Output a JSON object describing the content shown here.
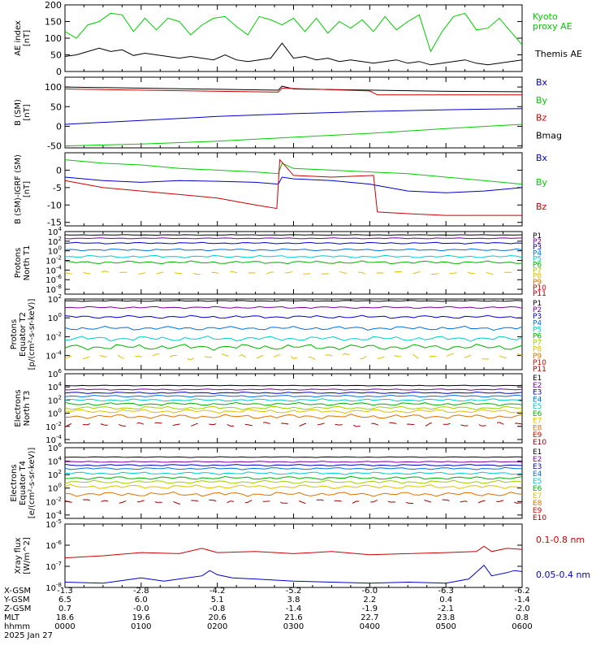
{
  "chart_data": [
    {
      "type": "line",
      "ylabel_lines": [
        "AE index",
        "[nT]"
      ],
      "ylim": [
        0,
        200
      ],
      "yticks": [
        "0",
        "50",
        "100",
        "150",
        "200"
      ],
      "legend": [
        {
          "text": "Kyoto",
          "color": "#00cc00"
        },
        {
          "text": "proxy AE",
          "color": "#00cc00"
        },
        {
          "text": "Themis AE",
          "color": "#000000"
        }
      ],
      "series": [
        {
          "name": "Kyoto proxy AE",
          "color": "#00cc00",
          "x_hours": [
            0,
            0.15,
            0.3,
            0.45,
            0.6,
            0.75,
            0.9,
            1.05,
            1.2,
            1.35,
            1.5,
            1.65,
            1.8,
            1.95,
            2.1,
            2.25,
            2.4,
            2.55,
            2.7,
            2.85,
            3.0,
            3.15,
            3.3,
            3.45,
            3.6,
            3.75,
            3.9,
            4.05,
            4.2,
            4.35,
            4.5,
            4.65,
            4.8,
            4.95,
            5.1,
            5.25,
            5.4,
            5.55,
            5.7,
            5.85,
            6.0
          ],
          "values": [
            120,
            100,
            140,
            150,
            175,
            170,
            120,
            160,
            125,
            160,
            150,
            110,
            140,
            160,
            165,
            135,
            110,
            165,
            155,
            140,
            160,
            120,
            160,
            115,
            150,
            130,
            155,
            120,
            165,
            125,
            150,
            170,
            60,
            120,
            165,
            175,
            125,
            130,
            160,
            120,
            80
          ]
        },
        {
          "name": "Themis AE",
          "color": "#000000",
          "x_hours": [
            0,
            0.15,
            0.3,
            0.45,
            0.6,
            0.75,
            0.9,
            1.05,
            1.2,
            1.35,
            1.5,
            1.65,
            1.8,
            1.95,
            2.1,
            2.25,
            2.4,
            2.55,
            2.7,
            2.85,
            3.0,
            3.15,
            3.3,
            3.45,
            3.6,
            3.75,
            3.9,
            4.05,
            4.2,
            4.35,
            4.5,
            4.65,
            4.8,
            4.95,
            5.1,
            5.25,
            5.4,
            5.55,
            5.7,
            5.85,
            6.0
          ],
          "values": [
            45,
            50,
            60,
            70,
            60,
            65,
            48,
            55,
            50,
            45,
            40,
            45,
            40,
            35,
            50,
            35,
            30,
            35,
            40,
            85,
            40,
            45,
            35,
            40,
            30,
            35,
            30,
            25,
            30,
            35,
            25,
            30,
            20,
            25,
            30,
            35,
            25,
            20,
            25,
            30,
            35
          ]
        }
      ]
    },
    {
      "type": "line",
      "ylabel_lines": [
        "B (SM)",
        "[nT]"
      ],
      "ylim": [
        -55,
        125
      ],
      "yticks": [
        "-50",
        "0",
        "50",
        "100"
      ],
      "legend": [
        {
          "text": "Bx",
          "color": "#0000cc"
        },
        {
          "text": "By",
          "color": "#00cc00"
        },
        {
          "text": "Bz",
          "color": "#cc0000"
        },
        {
          "text": "Bmag",
          "color": "#000000"
        }
      ],
      "series": [
        {
          "name": "Bmag",
          "color": "#000000",
          "x_hours": [
            0,
            2.8,
            2.85,
            3.0,
            5.0,
            6.0
          ],
          "values": [
            100,
            92,
            102,
            95,
            89,
            88
          ]
        },
        {
          "name": "Bz",
          "color": "#cc0000",
          "x_hours": [
            0,
            2.8,
            2.85,
            4.0,
            4.1,
            6.0
          ],
          "values": [
            95,
            87,
            97,
            90,
            80,
            80
          ]
        },
        {
          "name": "Bx",
          "color": "#0000cc",
          "x_hours": [
            0,
            1,
            2,
            3,
            4,
            5,
            6
          ],
          "values": [
            5,
            15,
            25,
            32,
            38,
            42,
            45
          ]
        },
        {
          "name": "By",
          "color": "#00cc00",
          "x_hours": [
            0,
            1,
            2,
            3,
            4,
            5,
            6
          ],
          "values": [
            -50,
            -45,
            -38,
            -28,
            -18,
            -6,
            5
          ]
        }
      ]
    },
    {
      "type": "line",
      "ylabel_lines": [
        "B (SM)-IGRF (SM)",
        "[nT]"
      ],
      "ylim": [
        -16,
        5
      ],
      "yticks": [
        "-15",
        "-10",
        "-5",
        "0"
      ],
      "legend": [
        {
          "text": "Bx",
          "color": "#0000cc"
        },
        {
          "text": "By",
          "color": "#00cc00"
        },
        {
          "text": "Bz",
          "color": "#cc0000"
        }
      ],
      "series": [
        {
          "name": "By",
          "color": "#00cc00",
          "x_hours": [
            0,
            0.5,
            1,
            1.5,
            2,
            2.5,
            2.8,
            2.85,
            3.0,
            3.5,
            4,
            4.5,
            5,
            5.5,
            6
          ],
          "values": [
            3,
            2,
            1.5,
            0.5,
            0,
            -0.5,
            -1,
            2,
            0.5,
            0,
            -0.5,
            -1,
            -2,
            -3,
            -4
          ]
        },
        {
          "name": "Bx",
          "color": "#0000cc",
          "x_hours": [
            0,
            0.5,
            1,
            1.5,
            2,
            2.5,
            2.8,
            2.85,
            3.0,
            3.5,
            4,
            4.5,
            5,
            5.5,
            6
          ],
          "values": [
            -2,
            -3,
            -3.5,
            -3,
            -3.2,
            -3.5,
            -4,
            -2,
            -2.5,
            -3,
            -4,
            -6,
            -6.5,
            -6,
            -5
          ]
        },
        {
          "name": "Bz",
          "color": "#cc0000",
          "x_hours": [
            0,
            0.5,
            1,
            1.5,
            2,
            2.5,
            2.78,
            2.82,
            3.0,
            3.5,
            4.05,
            4.1,
            4.5,
            5,
            5.5,
            6
          ],
          "values": [
            -3,
            -5,
            -6,
            -7,
            -8,
            -10,
            -11,
            3,
            -1.5,
            -2,
            -1.5,
            -12,
            -12.5,
            -13,
            -13,
            -13
          ]
        }
      ]
    },
    {
      "type": "line",
      "ylabel_lines": [
        "Protons",
        "North T1"
      ],
      "ylog": true,
      "ylim_exp": [
        -9,
        4
      ],
      "yticks_exp": [
        4,
        2,
        0,
        -2,
        -4,
        -6,
        -8
      ],
      "legend": [
        {
          "text": "P1",
          "color": "#000000"
        },
        {
          "text": "P2",
          "color": "#7a00a0"
        },
        {
          "text": "P3",
          "color": "#0000cc"
        },
        {
          "text": "P4",
          "color": "#0070e0"
        },
        {
          "text": "P5",
          "color": "#00cccc"
        },
        {
          "text": "P6",
          "color": "#00b000"
        },
        {
          "text": "P7",
          "color": "#a0d000"
        },
        {
          "text": "P8",
          "color": "#e0c000"
        },
        {
          "text": "P9",
          "color": "#e07000"
        },
        {
          "text": "P10",
          "color": "#e00000"
        },
        {
          "text": "P11",
          "color": "#a00000"
        }
      ],
      "series": [
        {
          "name": "P1",
          "color": "#000000",
          "level_exp": 3.3
        },
        {
          "name": "P2",
          "color": "#7a00a0",
          "level_exp": 2.6
        },
        {
          "name": "P3",
          "color": "#0000cc",
          "level_exp": 1.6
        },
        {
          "name": "P4",
          "color": "#0070e0",
          "level_exp": 0.2
        },
        {
          "name": "P5",
          "color": "#00cccc",
          "level_exp": -1.2
        },
        {
          "name": "P6",
          "color": "#00b000",
          "level_exp": -2.4
        },
        {
          "name": "P7",
          "color": "#e0c000",
          "level_exp": -4.6
        }
      ]
    },
    {
      "type": "line",
      "ylabel_lines": [
        "Protons",
        "Equator T2",
        "[p/(cm²-s-sr-keV)]"
      ],
      "ylog": true,
      "ylim_exp": [
        -5.5,
        2
      ],
      "yticks_exp": [
        2,
        0,
        -2,
        -4
      ],
      "legend": [
        {
          "text": "P1",
          "color": "#000000"
        },
        {
          "text": "P2",
          "color": "#7a00a0"
        },
        {
          "text": "P3",
          "color": "#0000cc"
        },
        {
          "text": "P4",
          "color": "#0070e0"
        },
        {
          "text": "P5",
          "color": "#00cccc"
        },
        {
          "text": "P6",
          "color": "#00b000"
        },
        {
          "text": "P7",
          "color": "#a0d000"
        },
        {
          "text": "P8",
          "color": "#e0c000"
        },
        {
          "text": "P9",
          "color": "#e07000"
        },
        {
          "text": "P10",
          "color": "#e00000"
        },
        {
          "text": "P11",
          "color": "#a00000"
        }
      ],
      "series": [
        {
          "name": "P1",
          "color": "#000000",
          "level_exp": 1.8
        },
        {
          "name": "P2",
          "color": "#7a00a0",
          "level_exp": 1.1
        },
        {
          "name": "P3",
          "color": "#0000cc",
          "level_exp": 0.1
        },
        {
          "name": "P4",
          "color": "#0070e0",
          "level_exp": -1.1
        },
        {
          "name": "P5",
          "color": "#00cccc",
          "level_exp": -2.2
        },
        {
          "name": "P6",
          "color": "#00b000",
          "level_exp": -3.1
        },
        {
          "name": "P7",
          "color": "#e0c000",
          "level_exp": -4.1
        }
      ]
    },
    {
      "type": "line",
      "ylabel_lines": [
        "Electrons",
        "North T3"
      ],
      "ylog": true,
      "ylim_exp": [
        -4.5,
        6
      ],
      "yticks_exp": [
        6,
        4,
        2,
        0,
        -2,
        -4
      ],
      "legend": [
        {
          "text": "E1",
          "color": "#000000"
        },
        {
          "text": "E2",
          "color": "#7a00a0"
        },
        {
          "text": "E3",
          "color": "#0000cc"
        },
        {
          "text": "E4",
          "color": "#0070e0"
        },
        {
          "text": "E5",
          "color": "#00cccc"
        },
        {
          "text": "E6",
          "color": "#00b000"
        },
        {
          "text": "E7",
          "color": "#e0c000"
        },
        {
          "text": "E8",
          "color": "#e07000"
        },
        {
          "text": "E9",
          "color": "#e00000"
        },
        {
          "text": "E10",
          "color": "#a00000"
        }
      ],
      "series": [
        {
          "name": "E1",
          "color": "#000000",
          "level_exp": 4.2
        },
        {
          "name": "E2",
          "color": "#7a00a0",
          "level_exp": 3.6
        },
        {
          "name": "E3",
          "color": "#0000cc",
          "level_exp": 3.1
        },
        {
          "name": "E4",
          "color": "#0070e0",
          "level_exp": 2.6
        },
        {
          "name": "E5",
          "color": "#00cccc",
          "level_exp": 2.0
        },
        {
          "name": "E6",
          "color": "#00b000",
          "level_exp": 1.4
        },
        {
          "name": "E7",
          "color": "#a0d000",
          "level_exp": 0.8
        },
        {
          "name": "E8",
          "color": "#e0c000",
          "level_exp": 0.3
        },
        {
          "name": "E9",
          "color": "#e07000",
          "level_exp": -0.5
        },
        {
          "name": "E10",
          "color": "#a00000",
          "level_exp": -1.7
        }
      ]
    },
    {
      "type": "line",
      "ylabel_lines": [
        "Electrons",
        "Equator T4",
        "[e/(cm²-s-sr-keV)]"
      ],
      "ylog": true,
      "ylim_exp": [
        -4.5,
        6
      ],
      "yticks_exp": [
        6,
        4,
        2,
        0,
        -2,
        -4
      ],
      "legend": [
        {
          "text": "E1",
          "color": "#000000"
        },
        {
          "text": "E2",
          "color": "#7a00a0"
        },
        {
          "text": "E3",
          "color": "#0000cc"
        },
        {
          "text": "E4",
          "color": "#0070e0"
        },
        {
          "text": "E5",
          "color": "#00cccc"
        },
        {
          "text": "E6",
          "color": "#00b000"
        },
        {
          "text": "E7",
          "color": "#e0c000"
        },
        {
          "text": "E8",
          "color": "#e07000"
        },
        {
          "text": "E9",
          "color": "#e00000"
        },
        {
          "text": "E10",
          "color": "#a00000"
        }
      ],
      "series": [
        {
          "name": "E1",
          "color": "#000000",
          "level_exp": 4.6
        },
        {
          "name": "E2",
          "color": "#7a00a0",
          "level_exp": 3.9
        },
        {
          "name": "E3",
          "color": "#0000cc",
          "level_exp": 3.4
        },
        {
          "name": "E4",
          "color": "#0070e0",
          "level_exp": 2.9
        },
        {
          "name": "E5",
          "color": "#00cccc",
          "level_exp": 2.2
        },
        {
          "name": "E6",
          "color": "#00b000",
          "level_exp": 1.5
        },
        {
          "name": "E7",
          "color": "#a0d000",
          "level_exp": 0.9
        },
        {
          "name": "E8",
          "color": "#e0c000",
          "level_exp": 0.2
        },
        {
          "name": "E9",
          "color": "#e07000",
          "level_exp": -0.9
        },
        {
          "name": "E10",
          "color": "#a00000",
          "level_exp": -2.0
        }
      ]
    },
    {
      "type": "line",
      "ylabel_lines": [
        "Xray flux",
        "[W/m^2]"
      ],
      "ylog": true,
      "ylim_exp": [
        -8,
        -5
      ],
      "yticks_exp": [
        -5,
        -6,
        -7,
        -8
      ],
      "legend": [
        {
          "text": "0.1-0.8 nm",
          "color": "#cc0000"
        },
        {
          "text": "0.05-0.4 nm",
          "color": "#0000cc"
        }
      ],
      "series": [
        {
          "name": "0.1-0.8 nm",
          "color": "#cc0000",
          "x_hours": [
            0,
            0.5,
            1.0,
            1.5,
            1.8,
            2.0,
            2.5,
            3.0,
            3.5,
            4.0,
            4.5,
            5.0,
            5.4,
            5.5,
            5.6,
            5.8,
            6.0
          ],
          "values_exp": [
            -6.6,
            -6.5,
            -6.35,
            -6.4,
            -6.15,
            -6.35,
            -6.3,
            -6.4,
            -6.3,
            -6.45,
            -6.4,
            -6.35,
            -6.3,
            -6.05,
            -6.3,
            -6.15,
            -6.2
          ]
        },
        {
          "name": "0.05-0.4 nm",
          "color": "#0000cc",
          "x_hours": [
            0,
            0.5,
            0.8,
            1.0,
            1.3,
            1.5,
            1.8,
            1.9,
            2.0,
            2.2,
            2.5,
            3.0,
            3.5,
            4.0,
            4.5,
            5.0,
            5.3,
            5.5,
            5.6,
            5.8,
            5.9,
            6.0
          ],
          "values_exp": [
            -7.75,
            -7.8,
            -7.65,
            -7.55,
            -7.7,
            -7.6,
            -7.45,
            -7.2,
            -7.4,
            -7.55,
            -7.6,
            -7.7,
            -7.75,
            -7.8,
            -7.75,
            -7.8,
            -7.6,
            -6.95,
            -7.45,
            -7.3,
            -7.2,
            -7.25
          ]
        }
      ]
    }
  ],
  "orbit_table": {
    "row_labels": [
      "X-GSM",
      "Y-GSM",
      "Z-GSM",
      "MLT",
      "hhmm",
      "2025 Jan 27"
    ],
    "columns": [
      [
        "-1.3",
        "6.5",
        "0.7",
        "18.6",
        "0000"
      ],
      [
        "-2.8",
        "6.0",
        "-0.0",
        "19.6",
        "0100"
      ],
      [
        "-4.2",
        "5.1",
        "-0.8",
        "20.6",
        "0200"
      ],
      [
        "-5.2",
        "3.8",
        "-1.4",
        "21.6",
        "0300"
      ],
      [
        "-6.0",
        "2.2",
        "-1.9",
        "22.7",
        "0400"
      ],
      [
        "-6.3",
        "0.4",
        "-2.1",
        "23.8",
        "0500"
      ],
      [
        "-6.2",
        "-1.4",
        "-2.0",
        "0.8",
        "0600"
      ]
    ]
  }
}
